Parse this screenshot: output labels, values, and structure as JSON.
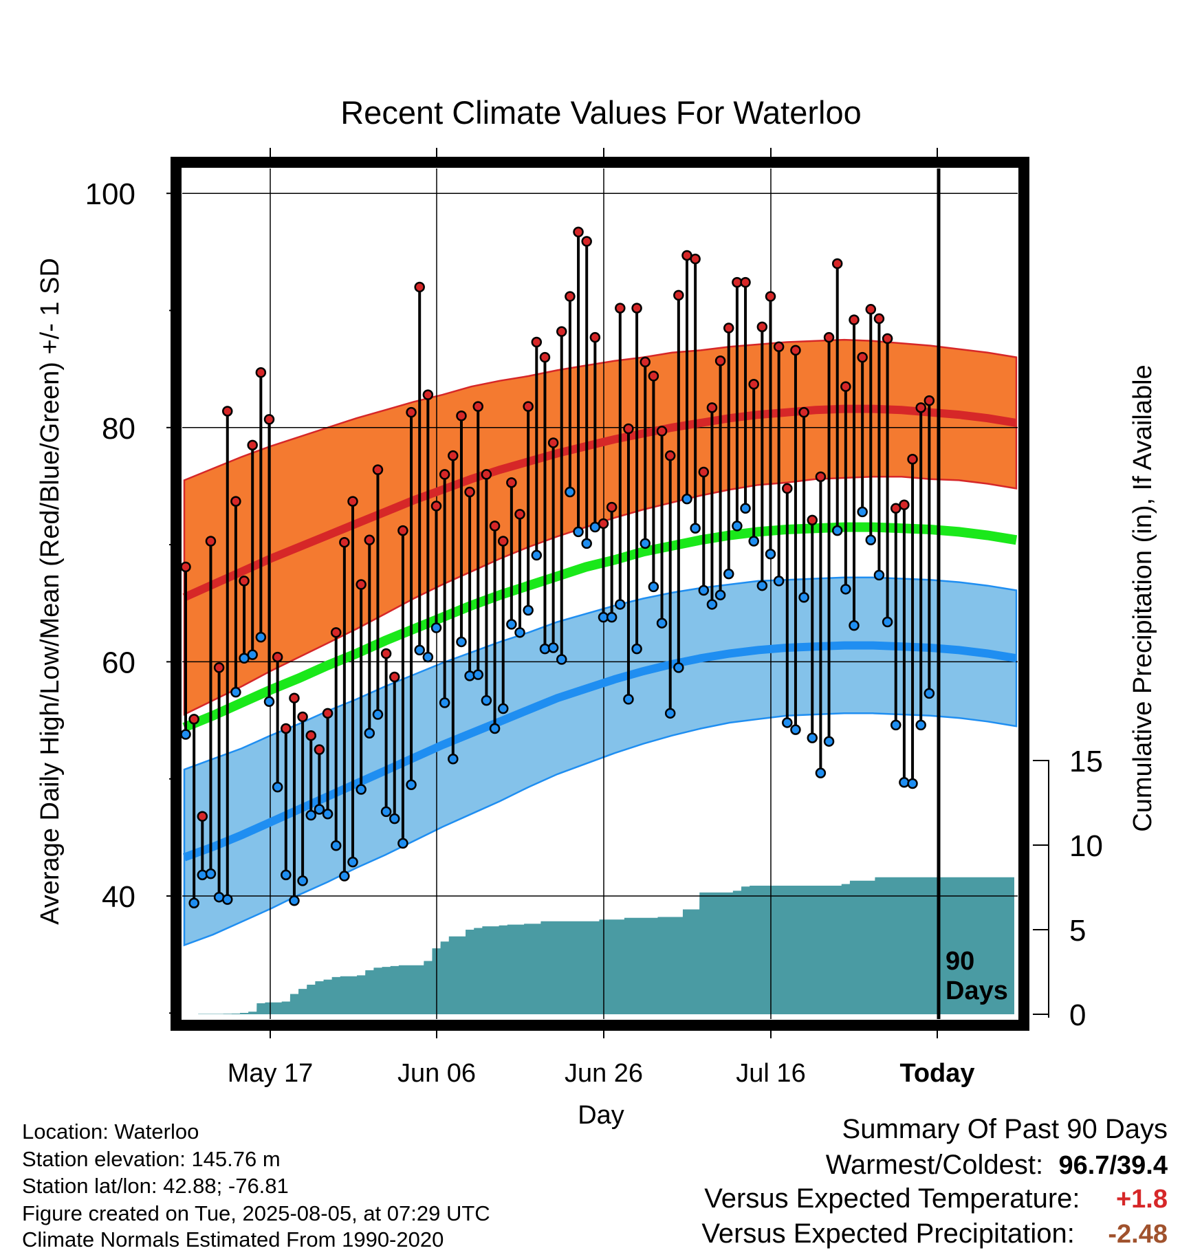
{
  "chart_data": {
    "type": "line",
    "title": "Recent Climate Values For Waterloo",
    "xlabel": "Day",
    "ylabel": "Average Daily High/Low/Mean (Red/Blue/Green) +/- 1 SD",
    "y2label": "Cumulative Precipitation (in), If Available",
    "ylim": [
      25,
      103
    ],
    "y_ticks": [
      100,
      80,
      60,
      40
    ],
    "y2_ticks": [
      15,
      10,
      5,
      0
    ],
    "x_ticks": [
      "May 17",
      "Jun 06",
      "Jun 26",
      "Jul 16",
      "Today"
    ],
    "marker_label": "90\nDays",
    "grid": true,
    "colors": {
      "high": "#d62728",
      "high_band": "#f47a30",
      "low": "#1f8ef1",
      "low_band": "#84c2ea",
      "mean": "#1ae81a",
      "precip": "#4a9ba3"
    },
    "daily_high": [
      68.1,
      55.1,
      46.8,
      70.3,
      59.5,
      81.4,
      73.7,
      66.9,
      78.5,
      84.7,
      80.7,
      60.4,
      54.3,
      56.9,
      55.3,
      53.7,
      52.5,
      55.6,
      62.5,
      70.2,
      73.7,
      66.6,
      70.4,
      76.4,
      60.7,
      58.7,
      71.2,
      81.3,
      92.0,
      82.8,
      73.3,
      76.0,
      77.6,
      81.0,
      74.5,
      81.8,
      76.0,
      71.6,
      70.3,
      75.3,
      72.6,
      81.8,
      87.3,
      86.0,
      78.7,
      88.2,
      91.2,
      96.7,
      95.9,
      87.7,
      71.8,
      73.2,
      90.2,
      79.9,
      90.2,
      85.6,
      84.4,
      79.7,
      77.6,
      91.3,
      94.7,
      94.4,
      76.2,
      81.7,
      85.7,
      88.5,
      92.4,
      92.4,
      83.7,
      88.6,
      91.2,
      86.9,
      74.8,
      86.6,
      81.3,
      72.1,
      75.8,
      87.7,
      94.0,
      83.5,
      89.2,
      86.0,
      90.1,
      89.3,
      87.6,
      73.1,
      73.4,
      77.3,
      81.7,
      82.3
    ],
    "daily_low": [
      53.8,
      39.4,
      41.8,
      41.9,
      39.9,
      39.7,
      57.4,
      60.3,
      60.6,
      62.1,
      56.6,
      49.3,
      41.8,
      39.6,
      41.3,
      46.9,
      47.4,
      47.0,
      44.3,
      41.7,
      42.9,
      49.1,
      53.9,
      55.5,
      47.2,
      46.6,
      44.5,
      49.5,
      61.0,
      60.4,
      62.9,
      56.5,
      51.7,
      61.7,
      58.8,
      58.9,
      56.7,
      54.3,
      56.0,
      63.2,
      62.5,
      64.4,
      69.1,
      61.1,
      61.2,
      60.2,
      74.5,
      71.1,
      70.1,
      71.5,
      63.8,
      63.8,
      64.9,
      56.8,
      61.1,
      70.1,
      66.4,
      63.3,
      55.6,
      59.5,
      73.9,
      71.4,
      66.1,
      64.9,
      65.7,
      67.5,
      71.6,
      73.1,
      70.3,
      66.5,
      69.2,
      66.9,
      54.8,
      54.2,
      65.5,
      53.5,
      50.5,
      53.2,
      71.2,
      66.2,
      63.1,
      72.8,
      70.4,
      67.4,
      63.4,
      54.6,
      49.7,
      49.6,
      54.6,
      57.3
    ],
    "normal_high": [
      65.5,
      66.6,
      67.7,
      68.8,
      69.8,
      70.8,
      71.8,
      72.8,
      73.8,
      74.7,
      75.6,
      76.4,
      77.1,
      77.8,
      78.4,
      79.0,
      79.5,
      80.0,
      80.4,
      80.8,
      81.1,
      81.3,
      81.5,
      81.6,
      81.6,
      81.5,
      81.3,
      81.1,
      80.8,
      80.4
    ],
    "normal_high_sd": [
      10.0,
      9.9,
      9.8,
      9.6,
      9.4,
      9.2,
      9.0,
      8.7,
      8.4,
      8.1,
      7.9,
      7.6,
      7.3,
      7.1,
      6.9,
      6.7,
      6.5,
      6.4,
      6.2,
      6.1,
      6.0,
      6.0,
      5.9,
      5.9,
      5.8,
      5.7,
      5.7,
      5.6,
      5.6,
      5.6
    ],
    "normal_low": [
      43.3,
      44.2,
      45.2,
      46.3,
      47.4,
      48.5,
      49.6,
      50.7,
      51.8,
      52.9,
      53.9,
      54.9,
      55.9,
      56.9,
      57.7,
      58.5,
      59.2,
      59.8,
      60.3,
      60.7,
      61.0,
      61.2,
      61.3,
      61.4,
      61.4,
      61.3,
      61.2,
      61.0,
      60.7,
      60.3
    ],
    "normal_low_sd": [
      7.5,
      7.5,
      7.4,
      7.4,
      7.3,
      7.3,
      7.2,
      7.2,
      7.1,
      7.0,
      6.9,
      6.8,
      6.6,
      6.5,
      6.4,
      6.3,
      6.2,
      6.1,
      6.0,
      5.9,
      5.9,
      5.8,
      5.8,
      5.8,
      5.8,
      5.8,
      5.8,
      5.8,
      5.8,
      5.8
    ],
    "normal_mean": [
      54.4,
      55.4,
      56.5,
      57.6,
      58.6,
      59.7,
      60.7,
      61.8,
      62.8,
      63.8,
      64.8,
      65.7,
      66.5,
      67.3,
      68.1,
      68.7,
      69.4,
      69.9,
      70.4,
      70.8,
      71.1,
      71.3,
      71.4,
      71.5,
      71.5,
      71.4,
      71.3,
      71.1,
      70.8,
      70.4
    ],
    "cumulative_precip": [
      0.0,
      0.0,
      0.02,
      0.02,
      0.02,
      0.03,
      0.04,
      0.08,
      0.15,
      0.65,
      0.7,
      0.7,
      0.75,
      1.2,
      1.5,
      1.75,
      1.95,
      2.05,
      2.2,
      2.25,
      2.25,
      2.3,
      2.6,
      2.75,
      2.8,
      2.85,
      2.9,
      2.9,
      2.9,
      3.15,
      3.9,
      4.3,
      4.6,
      4.6,
      5.0,
      5.1,
      5.2,
      5.2,
      5.25,
      5.3,
      5.3,
      5.35,
      5.35,
      5.5,
      5.5,
      5.5,
      5.5,
      5.5,
      5.5,
      5.5,
      5.6,
      5.6,
      5.6,
      5.7,
      5.7,
      5.7,
      5.7,
      5.75,
      5.75,
      5.75,
      6.2,
      6.2,
      7.2,
      7.2,
      7.2,
      7.2,
      7.3,
      7.55,
      7.6,
      7.6,
      7.6,
      7.6,
      7.6,
      7.6,
      7.6,
      7.6,
      7.6,
      7.6,
      7.6,
      7.7,
      7.9,
      7.9,
      7.9,
      8.1,
      8.1,
      8.1,
      8.1,
      8.1,
      8.1,
      8.1
    ]
  },
  "footer": {
    "location": "Location: Waterloo",
    "elevation": "Station elevation: 145.76 m",
    "latlon": "Station lat/lon: 42.88; -76.81",
    "created": "Figure created on Tue, 2025-08-05, at 07:29 UTC",
    "normals": "Climate Normals Estimated From 1990-2020"
  },
  "summary": {
    "title": "Summary Of Past 90 Days",
    "warm_cold_label": "Warmest/Coldest:",
    "warm_cold_value": "96.7/39.4",
    "temp_label": "Versus Expected Temperature:",
    "temp_value": "+1.8",
    "temp_color": "#d62728",
    "precip_label": "Versus Expected Precipitation:",
    "precip_value": "-2.48",
    "precip_color": "#a0522d"
  }
}
